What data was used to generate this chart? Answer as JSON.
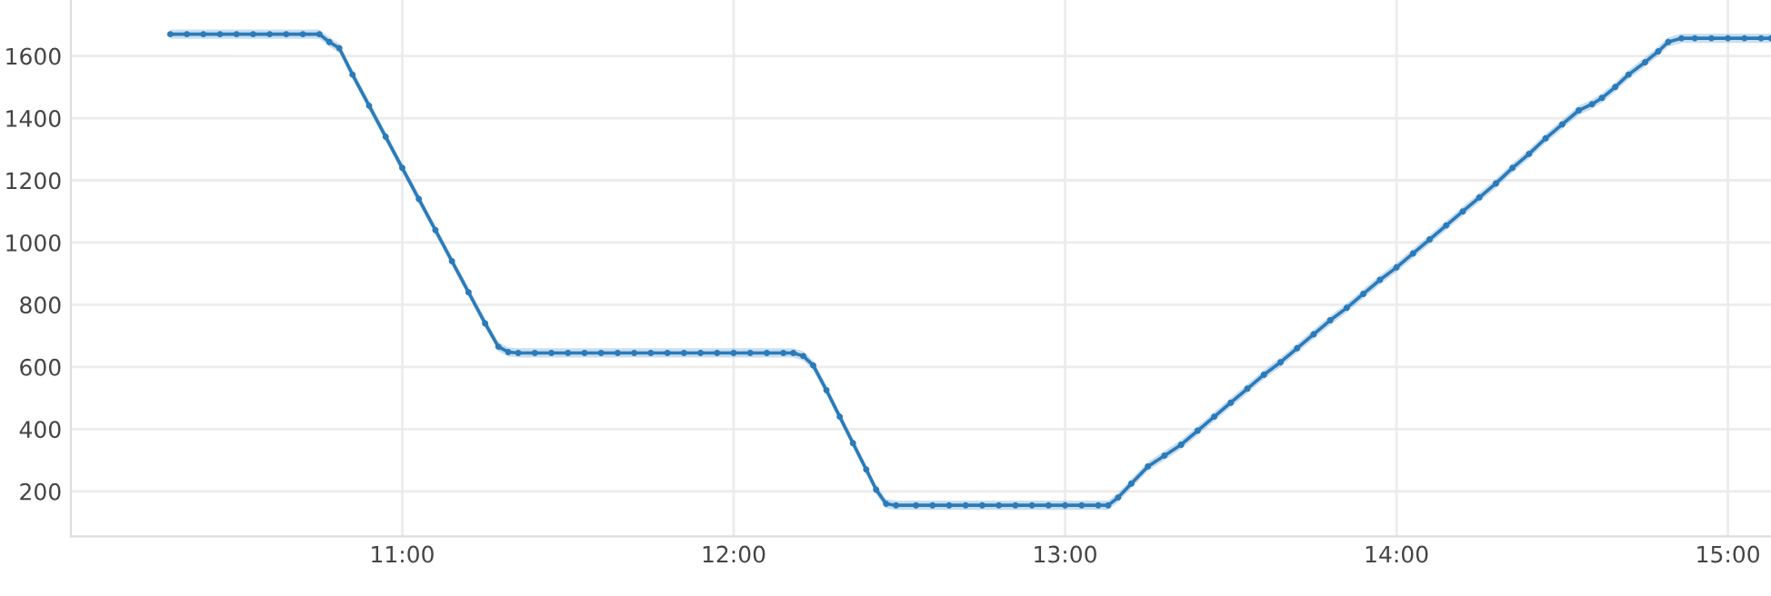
{
  "chart_data": {
    "type": "line",
    "x": [
      10.3,
      10.35,
      10.4,
      10.45,
      10.5,
      10.55,
      10.6,
      10.65,
      10.7,
      10.75,
      10.78,
      10.81,
      10.85,
      10.9,
      10.95,
      11.0,
      11.05,
      11.1,
      11.15,
      11.2,
      11.25,
      11.29,
      11.32,
      11.35,
      11.4,
      11.45,
      11.5,
      11.55,
      11.6,
      11.65,
      11.7,
      11.75,
      11.8,
      11.85,
      11.9,
      11.95,
      12.0,
      12.05,
      12.1,
      12.15,
      12.18,
      12.21,
      12.24,
      12.28,
      12.32,
      12.36,
      12.4,
      12.43,
      12.46,
      12.49,
      12.55,
      12.6,
      12.65,
      12.7,
      12.75,
      12.8,
      12.85,
      12.9,
      12.95,
      13.0,
      13.05,
      13.1,
      13.13,
      13.16,
      13.2,
      13.25,
      13.3,
      13.35,
      13.4,
      13.45,
      13.5,
      13.55,
      13.6,
      13.65,
      13.7,
      13.75,
      13.8,
      13.85,
      13.9,
      13.95,
      14.0,
      14.05,
      14.1,
      14.15,
      14.2,
      14.25,
      14.3,
      14.35,
      14.4,
      14.45,
      14.5,
      14.55,
      14.59,
      14.62,
      14.66,
      14.7,
      14.75,
      14.79,
      14.82,
      14.86,
      14.9,
      14.95,
      15.0,
      15.05,
      15.1,
      15.13
    ],
    "series": [
      {
        "color": "#2b7bba",
        "values": [
          1670,
          1670,
          1670,
          1670,
          1670,
          1670,
          1670,
          1670,
          1670,
          1670,
          1645,
          1625,
          1540,
          1440,
          1340,
          1240,
          1140,
          1040,
          940,
          840,
          740,
          665,
          648,
          645,
          645,
          645,
          645,
          645,
          645,
          645,
          645,
          645,
          645,
          645,
          645,
          645,
          645,
          645,
          645,
          645,
          645,
          635,
          605,
          525,
          440,
          355,
          270,
          205,
          160,
          155,
          155,
          155,
          155,
          155,
          155,
          155,
          155,
          155,
          155,
          155,
          155,
          155,
          155,
          180,
          225,
          280,
          315,
          350,
          395,
          440,
          485,
          530,
          575,
          615,
          660,
          705,
          750,
          790,
          835,
          880,
          920,
          965,
          1010,
          1055,
          1100,
          1145,
          1190,
          1240,
          1285,
          1335,
          1380,
          1425,
          1445,
          1465,
          1500,
          1540,
          1580,
          1615,
          1645,
          1657,
          1657,
          1657,
          1657,
          1657,
          1657,
          1657
        ],
        "lower": [
          1655,
          1655,
          1655,
          1655,
          1655,
          1655,
          1655,
          1655,
          1655,
          1655,
          1630,
          1610,
          1525,
          1425,
          1325,
          1225,
          1125,
          1025,
          925,
          825,
          725,
          650,
          633,
          630,
          630,
          630,
          630,
          630,
          630,
          630,
          630,
          630,
          630,
          630,
          630,
          630,
          630,
          630,
          630,
          630,
          630,
          620,
          590,
          510,
          425,
          340,
          255,
          190,
          145,
          140,
          140,
          140,
          140,
          140,
          140,
          140,
          140,
          140,
          140,
          140,
          140,
          140,
          140,
          165,
          210,
          265,
          300,
          335,
          380,
          425,
          470,
          515,
          560,
          600,
          645,
          690,
          735,
          775,
          820,
          865,
          905,
          950,
          995,
          1040,
          1085,
          1130,
          1175,
          1225,
          1270,
          1320,
          1365,
          1410,
          1430,
          1450,
          1485,
          1525,
          1565,
          1600,
          1630,
          1642,
          1642,
          1642,
          1642,
          1642,
          1642,
          1642
        ],
        "upper": [
          1685,
          1685,
          1685,
          1685,
          1685,
          1685,
          1685,
          1685,
          1685,
          1685,
          1660,
          1640,
          1555,
          1455,
          1355,
          1255,
          1155,
          1055,
          955,
          855,
          755,
          680,
          663,
          660,
          660,
          660,
          660,
          660,
          660,
          660,
          660,
          660,
          660,
          660,
          660,
          660,
          660,
          660,
          660,
          660,
          660,
          650,
          620,
          540,
          455,
          370,
          285,
          220,
          175,
          170,
          170,
          170,
          170,
          170,
          170,
          170,
          170,
          170,
          170,
          170,
          170,
          170,
          170,
          195,
          240,
          295,
          330,
          365,
          410,
          455,
          500,
          545,
          590,
          630,
          675,
          720,
          765,
          805,
          850,
          895,
          935,
          980,
          1025,
          1070,
          1115,
          1160,
          1205,
          1255,
          1300,
          1350,
          1395,
          1440,
          1460,
          1480,
          1515,
          1555,
          1595,
          1630,
          1660,
          1672,
          1672,
          1672,
          1672,
          1672,
          1672,
          1672
        ]
      }
    ],
    "xlim": [
      10.0,
      15.13
    ],
    "ylim": [
      55,
      1780
    ],
    "xticks": [
      {
        "value": 11,
        "label": "11:00"
      },
      {
        "value": 12,
        "label": "12:00"
      },
      {
        "value": 13,
        "label": "13:00"
      },
      {
        "value": 14,
        "label": "14:00"
      },
      {
        "value": 15,
        "label": "15:00"
      }
    ],
    "yticks": [
      200,
      400,
      600,
      800,
      1000,
      1200,
      1400,
      1600
    ],
    "grid": true,
    "marker": "circle",
    "line_style": "solid"
  }
}
